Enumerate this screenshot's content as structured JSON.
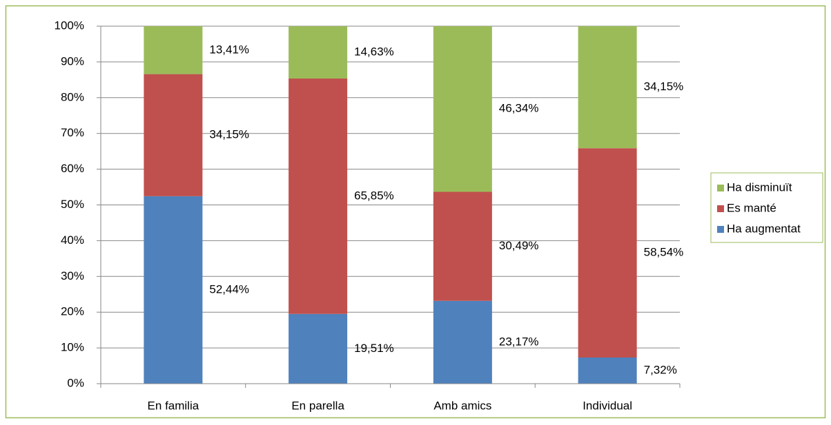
{
  "chart_data": {
    "type": "stacked_bar",
    "categories": [
      "En familia",
      "En parella",
      "Amb amics",
      "Individual"
    ],
    "series": [
      {
        "name": "Ha augmentat",
        "color": "#4f81bd",
        "values": [
          52.44,
          19.51,
          23.17,
          7.32
        ],
        "value_labels": [
          "52,44%",
          "19,51%",
          "23,17%",
          "7,32%"
        ]
      },
      {
        "name": "Es manté",
        "color": "#c0504d",
        "values": [
          34.15,
          65.85,
          30.49,
          58.54
        ],
        "value_labels": [
          "34,15%",
          "65,85%",
          "30,49%",
          "58,54%"
        ]
      },
      {
        "name": "Ha disminuït",
        "color": "#9bbb59",
        "values": [
          13.41,
          14.63,
          46.34,
          34.15
        ],
        "value_labels": [
          "13,41%",
          "14,63%",
          "46,34%",
          "34,15%"
        ]
      }
    ],
    "ylim": [
      0,
      100
    ],
    "yticks": [
      {
        "value": 0,
        "label": "0%"
      },
      {
        "value": 10,
        "label": "10%"
      },
      {
        "value": 20,
        "label": "20%"
      },
      {
        "value": 30,
        "label": "30%"
      },
      {
        "value": 40,
        "label": "40%"
      },
      {
        "value": 50,
        "label": "50%"
      },
      {
        "value": 60,
        "label": "60%"
      },
      {
        "value": 70,
        "label": "70%"
      },
      {
        "value": 80,
        "label": "80%"
      },
      {
        "value": 90,
        "label": "90%"
      },
      {
        "value": 100,
        "label": "100%"
      }
    ],
    "grid": true,
    "legend": "right"
  }
}
